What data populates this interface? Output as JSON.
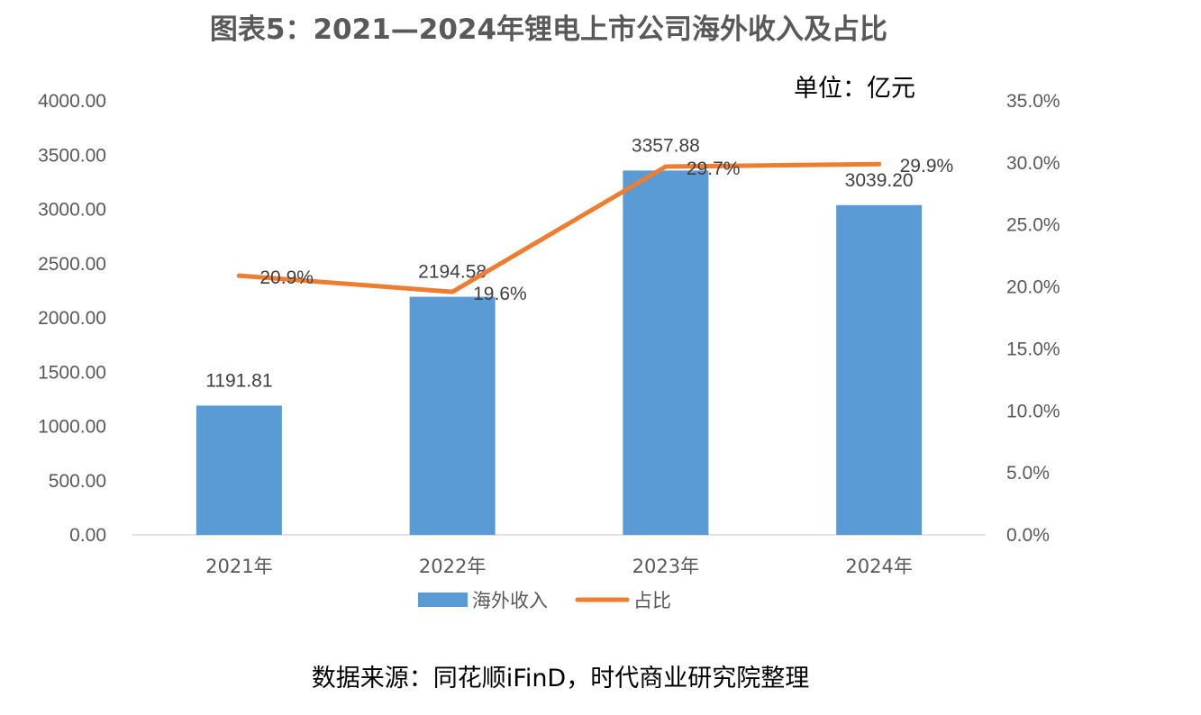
{
  "title": "图表5：2021—2024年锂电上市公司海外收入及占比",
  "unit": "单位：亿元",
  "source": "数据来源：同花顺iFinD，时代商业研究院整理",
  "chart_data": {
    "type": "bar",
    "categories": [
      "2021年",
      "2022年",
      "2023年",
      "2024年"
    ],
    "series": [
      {
        "name": "海外收入",
        "type": "bar",
        "axis": "left",
        "color": "#5B9BD5",
        "values": [
          1191.81,
          2194.58,
          3357.88,
          3039.2
        ],
        "labels": [
          "1191.81",
          "2194.58",
          "3357.88",
          "3039.20"
        ]
      },
      {
        "name": "占比",
        "type": "line",
        "axis": "right",
        "color": "#ED7D31",
        "values": [
          20.9,
          19.6,
          29.7,
          29.9
        ],
        "labels": [
          "20.9%",
          "19.6%",
          "29.7%",
          "29.9%"
        ]
      }
    ],
    "y_left": {
      "ylim": [
        0,
        4000
      ],
      "ticks": [
        "0.00",
        "500.00",
        "1000.00",
        "1500.00",
        "2000.00",
        "2500.00",
        "3000.00",
        "3500.00",
        "4000.00"
      ]
    },
    "y_right": {
      "ylim": [
        0,
        35
      ],
      "ticks": [
        "0.0%",
        "5.0%",
        "10.0%",
        "15.0%",
        "20.0%",
        "25.0%",
        "30.0%",
        "35.0%"
      ]
    },
    "grid": false,
    "legend_position": "bottom"
  }
}
